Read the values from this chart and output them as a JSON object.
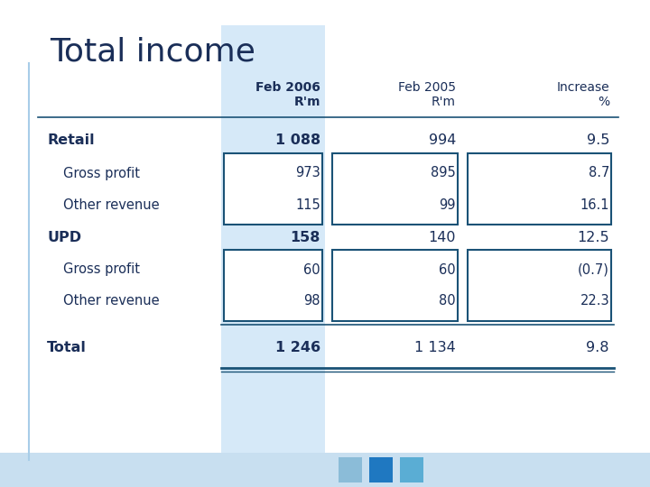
{
  "title": "Total income",
  "title_color": "#1a2e58",
  "title_fontsize": 26,
  "bg_color": "#ffffff",
  "header": [
    "Feb 2006\nR'm",
    "Feb 2005\nR'm",
    "Increase\n%"
  ],
  "rows": [
    {
      "label": "Retail",
      "indent": 0,
      "bold": true,
      "v1": "1 088",
      "v2": "994",
      "v3": "9.5",
      "box": false
    },
    {
      "label": "Gross profit",
      "indent": 1,
      "bold": false,
      "v1": "973",
      "v2": "895",
      "v3": "8.7",
      "box": true
    },
    {
      "label": "Other revenue",
      "indent": 1,
      "bold": false,
      "v1": "115",
      "v2": "99",
      "v3": "16.1",
      "box": true
    },
    {
      "label": "UPD",
      "indent": 0,
      "bold": true,
      "v1": "158",
      "v2": "140",
      "v3": "12.5",
      "box": false
    },
    {
      "label": "Gross profit",
      "indent": 1,
      "bold": false,
      "v1": "60",
      "v2": "60",
      "v3": "(0.7)",
      "box": true
    },
    {
      "label": "Other revenue",
      "indent": 1,
      "bold": false,
      "v1": "98",
      "v2": "80",
      "v3": "22.3",
      "box": true
    },
    {
      "label": "Total",
      "indent": 0,
      "bold": true,
      "v1": "1 246",
      "v2": "1 134",
      "v3": "9.8",
      "box": false
    }
  ],
  "accent_col_bg": "#d6e9f8",
  "box_border_color": "#1a5276",
  "text_color": "#1a2e58",
  "line_color": "#1a5276",
  "bottom_strip_color": "#c8dff0",
  "left_accent_color": "#a8cde8",
  "sq_colors": [
    "#8bbcd8",
    "#1f78c1",
    "#5aadd4"
  ]
}
